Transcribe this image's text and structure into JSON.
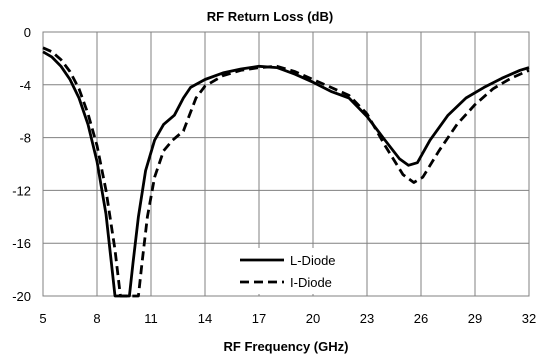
{
  "chart_data": {
    "type": "line",
    "title": "RF Return Loss (dB)",
    "xlabel": "RF Frequency (GHz)",
    "ylabel": "",
    "xlim": [
      5,
      32
    ],
    "ylim": [
      -20,
      0
    ],
    "x_ticks": [
      5,
      8,
      11,
      14,
      17,
      20,
      23,
      26,
      29,
      32
    ],
    "y_ticks": [
      0,
      -4,
      -8,
      -12,
      -16,
      -20
    ],
    "grid": true,
    "legend_position": "bottom-center",
    "series": [
      {
        "name": "L-Diode",
        "style": "solid",
        "color": "#000000",
        "points": [
          [
            5,
            -1.5
          ],
          [
            5.5,
            -1.9
          ],
          [
            6,
            -2.6
          ],
          [
            6.5,
            -3.6
          ],
          [
            7,
            -5.0
          ],
          [
            7.5,
            -7.0
          ],
          [
            8,
            -9.8
          ],
          [
            8.5,
            -13.8
          ],
          [
            8.8,
            -17.5
          ],
          [
            9.0,
            -20.0
          ],
          [
            9.8,
            -20.0
          ],
          [
            10.0,
            -17.5
          ],
          [
            10.3,
            -14.0
          ],
          [
            10.7,
            -10.5
          ],
          [
            11.2,
            -8.2
          ],
          [
            11.7,
            -7.0
          ],
          [
            12.3,
            -6.3
          ],
          [
            12.8,
            -5.0
          ],
          [
            13.2,
            -4.2
          ],
          [
            14,
            -3.6
          ],
          [
            15,
            -3.1
          ],
          [
            16,
            -2.8
          ],
          [
            17,
            -2.6
          ],
          [
            18,
            -2.7
          ],
          [
            19,
            -3.2
          ],
          [
            20,
            -3.8
          ],
          [
            21,
            -4.5
          ],
          [
            22,
            -5.0
          ],
          [
            23,
            -6.4
          ],
          [
            24,
            -8.2
          ],
          [
            24.8,
            -9.6
          ],
          [
            25.3,
            -10.1
          ],
          [
            25.8,
            -9.9
          ],
          [
            26.5,
            -8.2
          ],
          [
            27.5,
            -6.3
          ],
          [
            28.5,
            -5.0
          ],
          [
            29.5,
            -4.2
          ],
          [
            30.5,
            -3.5
          ],
          [
            31.5,
            -2.9
          ],
          [
            32,
            -2.7
          ]
        ]
      },
      {
        "name": "I-Diode",
        "style": "dashed",
        "color": "#000000",
        "points": [
          [
            5,
            -1.2
          ],
          [
            5.5,
            -1.5
          ],
          [
            6,
            -2.1
          ],
          [
            6.5,
            -3.0
          ],
          [
            7,
            -4.3
          ],
          [
            7.5,
            -6.2
          ],
          [
            8,
            -8.6
          ],
          [
            8.5,
            -12.0
          ],
          [
            9.0,
            -16.5
          ],
          [
            9.3,
            -20.0
          ],
          [
            10.3,
            -20.0
          ],
          [
            10.5,
            -17.5
          ],
          [
            10.8,
            -14.0
          ],
          [
            11.2,
            -11.0
          ],
          [
            11.7,
            -9.0
          ],
          [
            12.2,
            -8.2
          ],
          [
            12.8,
            -7.5
          ],
          [
            13.5,
            -5.0
          ],
          [
            14,
            -4.1
          ],
          [
            15,
            -3.3
          ],
          [
            16,
            -2.9
          ],
          [
            17,
            -2.7
          ],
          [
            18,
            -2.6
          ],
          [
            19,
            -3.0
          ],
          [
            20,
            -3.6
          ],
          [
            21,
            -4.2
          ],
          [
            22,
            -4.8
          ],
          [
            23,
            -6.2
          ],
          [
            24,
            -8.6
          ],
          [
            25,
            -10.8
          ],
          [
            25.6,
            -11.4
          ],
          [
            26.1,
            -11.0
          ],
          [
            27,
            -9.0
          ],
          [
            28,
            -7.0
          ],
          [
            29,
            -5.5
          ],
          [
            30,
            -4.3
          ],
          [
            31,
            -3.5
          ],
          [
            32,
            -2.9
          ]
        ]
      }
    ]
  }
}
